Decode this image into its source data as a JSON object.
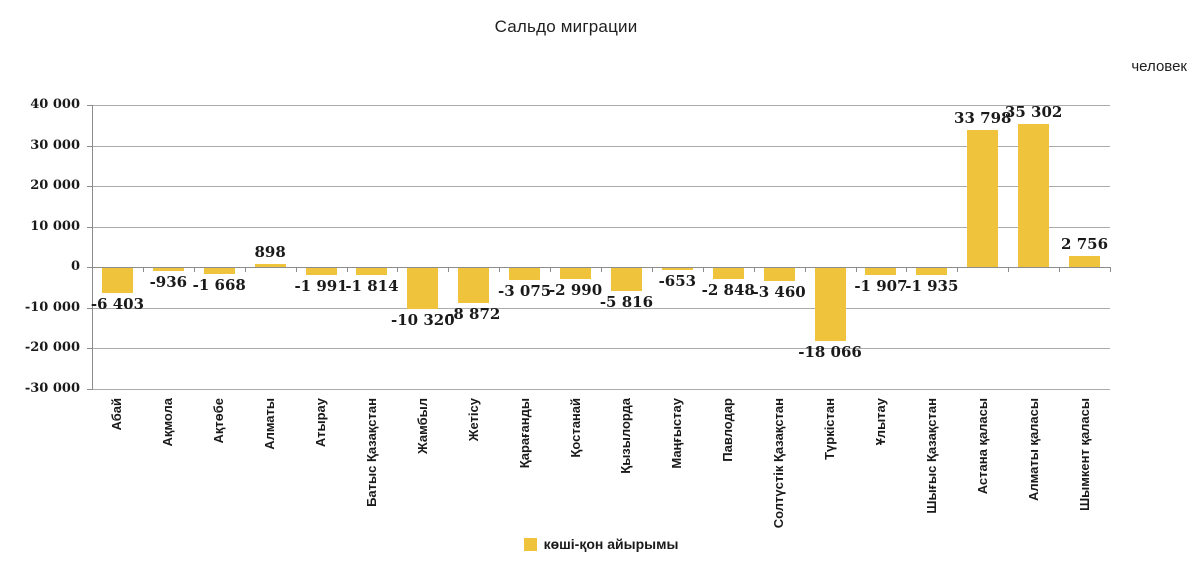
{
  "chart_data": {
    "type": "bar",
    "title": "Сальдо миграции",
    "unit_label": "человек",
    "legend": {
      "position": "bottom",
      "entries": [
        "көші-қон айырымы"
      ]
    },
    "categories": [
      "Абай",
      "Ақмола",
      "Ақтөбе",
      "Алматы",
      "Атырау",
      "Батыс Қазақстан",
      "Жамбыл",
      "Жетісу",
      "Қарағанды",
      "Қостанай",
      "Қызылорда",
      "Маңғыстау",
      "Павлодар",
      "Солтүстік Қазақстан",
      "Түркістан",
      "Ұлытау",
      "Шығыс Қазақстан",
      "Астана қаласы",
      "Алматы қаласы",
      "Шымкент қаласы"
    ],
    "series": [
      {
        "name": "көші-қон айырымы",
        "values": [
          -6403,
          -936,
          -1668,
          898,
          -1991,
          -1814,
          -10320,
          -8872,
          -3075,
          -2990,
          -5816,
          -653,
          -2848,
          -3460,
          -18066,
          -1907,
          -1935,
          33798,
          35302,
          2756
        ]
      }
    ],
    "ylim": [
      -30000,
      40000
    ],
    "ytick_step": 10000,
    "ytick_labels": [
      "40 000",
      "30 000",
      "20 000",
      "10 000",
      "0",
      "-10 000",
      "-20 000",
      "-30 000"
    ],
    "grid": true,
    "bar_color": "#F0C33C",
    "gridline_color": "#ABABAB",
    "axis_color": "#8C8C8C",
    "label_color": "#1A1A1A"
  }
}
